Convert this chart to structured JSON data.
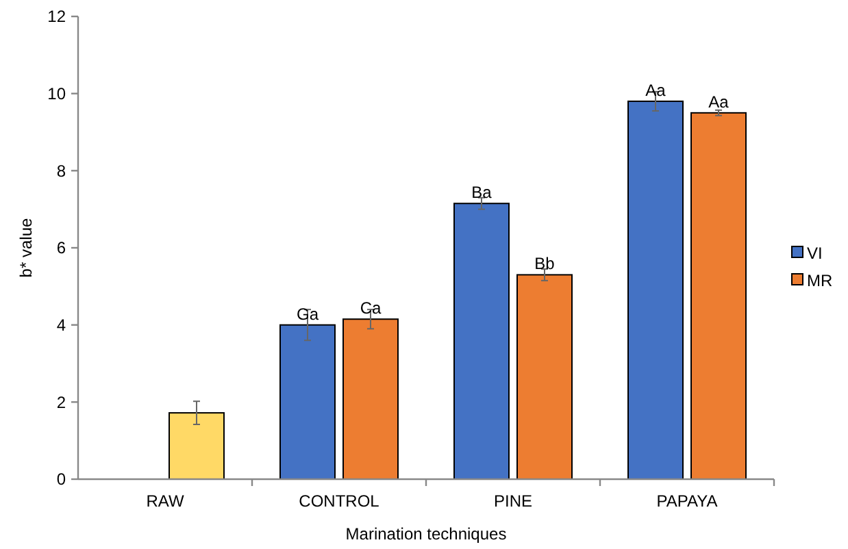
{
  "chart_data": {
    "type": "bar",
    "xlabel": "Marination techniques",
    "ylabel": "b* value",
    "categories": [
      "RAW",
      "CONTROL",
      "PINE",
      "PAPAYA"
    ],
    "series": [
      {
        "name": "VI",
        "color": "#4472c4",
        "values": [
          null,
          4.0,
          7.15,
          9.8
        ],
        "errors": [
          null,
          0.4,
          0.15,
          0.25
        ],
        "value_labels": [
          null,
          "Ga",
          "Ba",
          "Aa"
        ]
      },
      {
        "name": "MR",
        "color": "#ed7d31",
        "colors": [
          "#ffd966",
          "#ed7d31",
          "#ed7d31",
          "#ed7d31"
        ],
        "values": [
          1.72,
          4.15,
          5.3,
          9.5
        ],
        "errors": [
          0.3,
          0.25,
          0.15,
          0.07
        ],
        "value_labels": [
          null,
          "Ca",
          "Bb",
          "Aa"
        ]
      }
    ],
    "ylim": [
      0,
      12
    ],
    "yticks": [
      0,
      2,
      4,
      6,
      8,
      10,
      12
    ],
    "legend": "right",
    "grid": false
  }
}
